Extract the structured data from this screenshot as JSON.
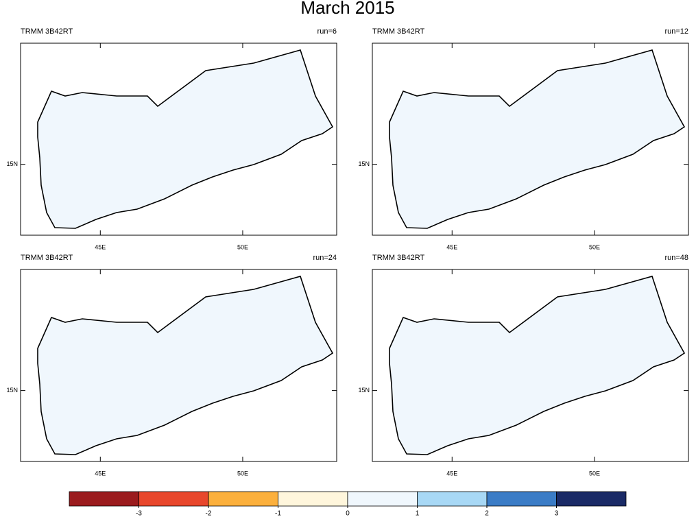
{
  "title": "March 2015",
  "panels": [
    {
      "left_label": "TRMM 3B42RT",
      "right_label": "run=6"
    },
    {
      "left_label": "TRMM 3B42RT",
      "right_label": "run=12"
    },
    {
      "left_label": "TRMM 3B42RT",
      "right_label": "run=24"
    },
    {
      "left_label": "TRMM 3B42RT",
      "right_label": "run=48"
    }
  ],
  "map_axes": {
    "xlim": [
      42.2,
      53.3
    ],
    "ylim": [
      12.6,
      19.1
    ],
    "xticks": [
      {
        "value": 45,
        "label": "45E"
      },
      {
        "value": 50,
        "label": "50E"
      }
    ],
    "yticks": [
      {
        "value": 15,
        "label": "15N"
      }
    ]
  },
  "colorbar": {
    "lim": [
      -4,
      4
    ],
    "ticks": [
      -3,
      -2,
      -1,
      0,
      1,
      2,
      3
    ],
    "colors": [
      "#9b1b1e",
      "#e8472c",
      "#fcb03c",
      "#fff6dc",
      "#f0f7fd",
      "#a8d8f5",
      "#3b7cc6",
      "#1a2a66"
    ]
  }
}
